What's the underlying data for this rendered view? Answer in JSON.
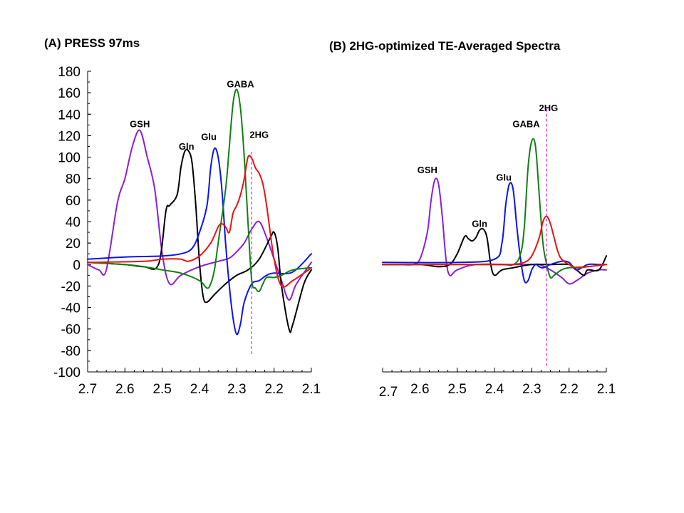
{
  "colors": {
    "GSH": "#8b1fd6",
    "Gln": "#000000",
    "Glu": "#0a14e6",
    "GABA": "#128012",
    "2HG": "#ee1111",
    "marker": "#cc00cc"
  },
  "chart_data": [
    {
      "type": "line",
      "title": "(A) PRESS 97ms",
      "xlabel": "",
      "ylabel": "",
      "xlim": [
        2.7,
        2.1
      ],
      "ylim": [
        -100,
        180
      ],
      "xticks": [
        "2.7",
        "2.6",
        "2.5",
        "2.4",
        "2.3",
        "2.2",
        "2.1"
      ],
      "yticks": [
        "180",
        "160",
        "140",
        "120",
        "100",
        "80",
        "60",
        "40",
        "20",
        "0",
        "-20",
        "-40",
        "-60",
        "-80",
        "-100"
      ],
      "show_y_labels": true,
      "marker_x": 2.26,
      "marker_y": [
        -85,
        105
      ],
      "peak_labels": [
        {
          "text": "GSH",
          "x": 2.56,
          "y": 128
        },
        {
          "text": "Gln",
          "x": 2.435,
          "y": 107
        },
        {
          "text": "Glu",
          "x": 2.375,
          "y": 116
        },
        {
          "text": "GABA",
          "x": 2.29,
          "y": 165
        },
        {
          "text": "2HG",
          "x": 2.24,
          "y": 118
        }
      ],
      "series": [
        {
          "name": "GSH",
          "x": [
            2.7,
            2.67,
            2.65,
            2.62,
            2.6,
            2.58,
            2.56,
            2.54,
            2.52,
            2.5,
            2.48,
            2.45,
            2.4,
            2.35,
            2.32,
            2.3,
            2.28,
            2.26,
            2.24,
            2.22,
            2.2,
            2.18,
            2.16,
            2.14,
            2.1
          ],
          "y": [
            0,
            -5,
            -5,
            58,
            80,
            110,
            125,
            100,
            70,
            10,
            -18,
            -10,
            -2,
            3,
            6,
            12,
            20,
            33,
            40,
            25,
            5,
            -15,
            -33,
            -18,
            2
          ]
        },
        {
          "name": "Gln",
          "x": [
            2.7,
            2.6,
            2.55,
            2.51,
            2.49,
            2.48,
            2.46,
            2.45,
            2.44,
            2.43,
            2.42,
            2.41,
            2.4,
            2.39,
            2.38,
            2.36,
            2.33,
            2.3,
            2.27,
            2.24,
            2.21,
            2.2,
            2.19,
            2.18,
            2.16,
            2.15,
            2.12,
            2.1
          ],
          "y": [
            2,
            0,
            -2,
            0,
            50,
            55,
            65,
            90,
            105,
            106,
            95,
            55,
            2,
            -30,
            -35,
            -28,
            -18,
            -10,
            -5,
            5,
            25,
            30,
            15,
            -20,
            -60,
            -56,
            -18,
            -5
          ]
        },
        {
          "name": "Glu",
          "x": [
            2.7,
            2.6,
            2.5,
            2.45,
            2.42,
            2.4,
            2.38,
            2.37,
            2.36,
            2.35,
            2.34,
            2.33,
            2.32,
            2.31,
            2.3,
            2.29,
            2.28,
            2.26,
            2.24,
            2.22,
            2.2,
            2.15,
            2.1
          ],
          "y": [
            5,
            7,
            8,
            10,
            15,
            30,
            55,
            90,
            108,
            100,
            70,
            20,
            -20,
            -50,
            -65,
            -55,
            -35,
            -18,
            -15,
            -10,
            -8,
            -7,
            10
          ]
        },
        {
          "name": "GABA",
          "x": [
            2.7,
            2.6,
            2.55,
            2.5,
            2.45,
            2.4,
            2.38,
            2.37,
            2.36,
            2.35,
            2.33,
            2.32,
            2.31,
            2.3,
            2.29,
            2.28,
            2.27,
            2.26,
            2.25,
            2.24,
            2.23,
            2.22,
            2.2,
            2.18,
            2.15,
            2.1
          ],
          "y": [
            2,
            0,
            -2,
            -5,
            -8,
            -15,
            -22,
            -18,
            -5,
            20,
            70,
            110,
            150,
            163,
            145,
            100,
            40,
            -15,
            -22,
            -25,
            -18,
            -12,
            -12,
            -10,
            -5,
            -3
          ]
        },
        {
          "name": "2HG",
          "x": [
            2.7,
            2.55,
            2.5,
            2.45,
            2.43,
            2.4,
            2.37,
            2.35,
            2.34,
            2.33,
            2.32,
            2.31,
            2.3,
            2.29,
            2.28,
            2.27,
            2.26,
            2.25,
            2.24,
            2.23,
            2.22,
            2.2,
            2.18,
            2.15,
            2.12,
            2.1
          ],
          "y": [
            2,
            3,
            5,
            5,
            3,
            8,
            20,
            35,
            38,
            35,
            30,
            48,
            55,
            65,
            80,
            100,
            99,
            90,
            85,
            75,
            55,
            5,
            -20,
            -15,
            -8,
            -3
          ]
        }
      ]
    },
    {
      "type": "line",
      "title": "(B) 2HG-optimized TE-Averaged Spectra",
      "xlabel": "",
      "ylabel": "",
      "xlim": [
        2.7,
        2.1
      ],
      "ylim": [
        -100,
        180
      ],
      "xticks": [
        "2.7",
        "2.6",
        "2.5",
        "2.4",
        "2.3",
        "2.2",
        "2.1"
      ],
      "show_y_labels": false,
      "marker_x": 2.26,
      "marker_y": [
        -95,
        145
      ],
      "peak_labels": [
        {
          "text": "GSH",
          "x": 2.58,
          "y": 85
        },
        {
          "text": "Gln",
          "x": 2.44,
          "y": 35
        },
        {
          "text": "Glu",
          "x": 2.375,
          "y": 78
        },
        {
          "text": "GABA",
          "x": 2.315,
          "y": 128
        },
        {
          "text": "2HG",
          "x": 2.255,
          "y": 143
        }
      ],
      "series": [
        {
          "name": "GSH",
          "x": [
            2.7,
            2.65,
            2.62,
            2.6,
            2.58,
            2.57,
            2.56,
            2.55,
            2.54,
            2.53,
            2.52,
            2.5,
            2.45,
            2.35,
            2.3,
            2.28,
            2.25,
            2.22,
            2.2,
            2.18,
            2.15,
            2.12,
            2.1
          ],
          "y": [
            0,
            0,
            0,
            5,
            30,
            60,
            79,
            75,
            45,
            5,
            -10,
            -5,
            0,
            0,
            0,
            0,
            -5,
            -12,
            -18,
            -15,
            -8,
            -5,
            -5
          ]
        },
        {
          "name": "Gln",
          "x": [
            2.7,
            2.6,
            2.55,
            2.52,
            2.5,
            2.48,
            2.47,
            2.46,
            2.45,
            2.44,
            2.43,
            2.42,
            2.41,
            2.4,
            2.38,
            2.35,
            2.3,
            2.25,
            2.2,
            2.18,
            2.16,
            2.15,
            2.12,
            2.1
          ],
          "y": [
            0,
            0,
            -2,
            0,
            10,
            26,
            24,
            22,
            25,
            32,
            33,
            25,
            0,
            -10,
            -5,
            -3,
            0,
            0,
            0,
            -5,
            -10,
            -5,
            -5,
            8
          ]
        },
        {
          "name": "Glu",
          "x": [
            2.7,
            2.5,
            2.4,
            2.38,
            2.37,
            2.36,
            2.35,
            2.34,
            2.33,
            2.32,
            2.31,
            2.3,
            2.29,
            2.28,
            2.27,
            2.25,
            2.22,
            2.2,
            2.18,
            2.15,
            2.12,
            2.1
          ],
          "y": [
            2,
            2,
            5,
            20,
            55,
            75,
            70,
            35,
            5,
            -15,
            -15,
            -5,
            0,
            -2,
            -3,
            0,
            3,
            2,
            -5,
            0,
            0,
            0
          ]
        },
        {
          "name": "GABA",
          "x": [
            2.7,
            2.4,
            2.35,
            2.33,
            2.32,
            2.31,
            2.3,
            2.29,
            2.28,
            2.27,
            2.26,
            2.25,
            2.24,
            2.22,
            2.2,
            2.15,
            2.1
          ],
          "y": [
            0,
            0,
            0,
            10,
            35,
            90,
            115,
            110,
            65,
            20,
            0,
            -12,
            -10,
            -5,
            -3,
            -2,
            0
          ]
        },
        {
          "name": "2HG",
          "x": [
            2.7,
            2.45,
            2.38,
            2.35,
            2.32,
            2.3,
            2.28,
            2.27,
            2.26,
            2.25,
            2.24,
            2.23,
            2.22,
            2.2,
            2.18,
            2.15,
            2.1
          ],
          "y": [
            0,
            0,
            0,
            0,
            2,
            8,
            25,
            40,
            45,
            38,
            25,
            12,
            5,
            0,
            -3,
            -2,
            0
          ]
        }
      ]
    }
  ]
}
